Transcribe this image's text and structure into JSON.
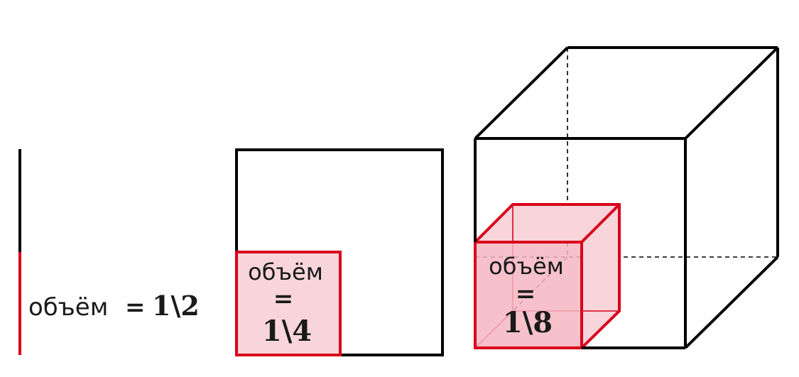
{
  "colors": {
    "outline": "#000000",
    "highlight": "#d9001b",
    "fill": "#f8d4db",
    "fill_front": "#f4b6c2"
  },
  "line_1d": {
    "word": "объём",
    "equals": "=",
    "fraction": "1\\2",
    "volume": 0.5
  },
  "square_2d": {
    "word": "объём",
    "equals": "=",
    "fraction": "1\\4",
    "volume": 0.25
  },
  "cube_3d": {
    "word": "объём",
    "equals": "=",
    "fraction": "1\\8",
    "volume": 0.125
  }
}
